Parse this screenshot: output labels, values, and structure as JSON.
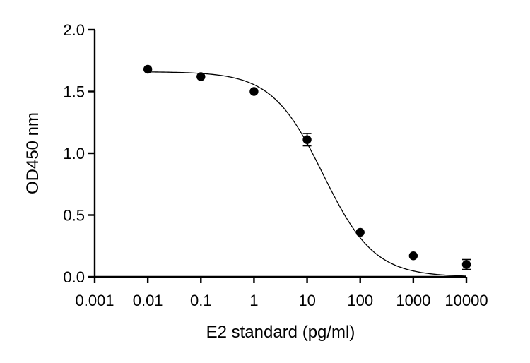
{
  "chart_data": {
    "type": "scatter",
    "xlabel": "E2 standard (pg/ml)",
    "ylabel": "OD450 nm",
    "x_scale": "log",
    "xlim": [
      0.001,
      10000
    ],
    "ylim": [
      0,
      2.0
    ],
    "x_ticks": [
      {
        "value": 0.001,
        "label": "0.001"
      },
      {
        "value": 0.01,
        "label": "0.01"
      },
      {
        "value": 0.1,
        "label": "0.1"
      },
      {
        "value": 1,
        "label": "1"
      },
      {
        "value": 10,
        "label": "10"
      },
      {
        "value": 100,
        "label": "100"
      },
      {
        "value": 1000,
        "label": "1000"
      },
      {
        "value": 10000,
        "label": "10000"
      }
    ],
    "y_ticks": [
      {
        "value": 0.0,
        "label": "0.0"
      },
      {
        "value": 0.5,
        "label": "0.5"
      },
      {
        "value": 1.0,
        "label": "1.0"
      },
      {
        "value": 1.5,
        "label": "1.5"
      },
      {
        "value": 2.0,
        "label": "2.0"
      }
    ],
    "grid": false,
    "points": [
      {
        "x": 0.01,
        "y": 1.68,
        "err": 0.0
      },
      {
        "x": 0.1,
        "y": 1.62,
        "err": 0.0
      },
      {
        "x": 1,
        "y": 1.5,
        "err": 0.0
      },
      {
        "x": 10,
        "y": 1.11,
        "err": 0.05
      },
      {
        "x": 100,
        "y": 0.36,
        "err": 0.0
      },
      {
        "x": 1000,
        "y": 0.17,
        "err": 0.0
      },
      {
        "x": 10000,
        "y": 0.1,
        "err": 0.04
      }
    ],
    "fit_curve": {
      "model": "4PL",
      "top": 1.66,
      "bottom": 0.0,
      "ec50": 20,
      "hill": 0.9
    },
    "colors": {
      "points": "#000000",
      "curve": "#000000",
      "axes": "#000000"
    }
  }
}
